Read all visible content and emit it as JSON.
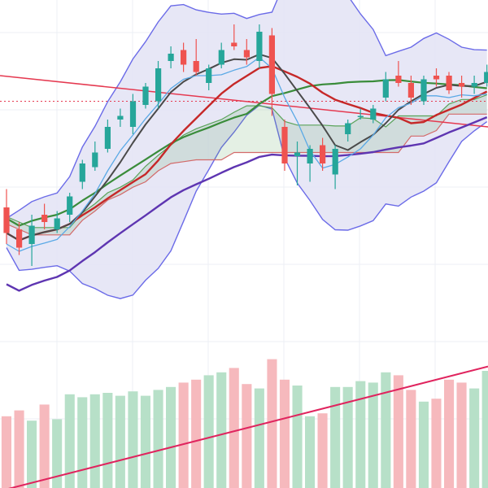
{
  "chart_data": {
    "type": "candlestick",
    "title": "",
    "grid": true,
    "legend": "none",
    "colors": {
      "up": "#26a69a",
      "down": "#ef5350",
      "volume_up": "#b7e0c8",
      "volume_down": "#f6b9bd",
      "bollinger_band": "#6b6be8",
      "bollinger_fill": "#e3e3f5",
      "ichimoku_green": "#5aa35a",
      "ichimoku_red": "#d36a6a",
      "ma_fast": "#4a4a4a",
      "ma_mid": "#3a8c3a",
      "ma_slow": "#c62828",
      "ma_long": "#5e35b1",
      "light_blue": "#5aa9e6",
      "trendline": "#e53950",
      "volume_trend": "#e0245e"
    },
    "price_ylim": [
      20,
      120
    ],
    "volume_ylim": [
      0,
      100
    ],
    "candles": [
      {
        "o": 70,
        "h": 75,
        "l": 60,
        "c": 63
      },
      {
        "o": 64,
        "h": 66,
        "l": 57,
        "c": 59
      },
      {
        "o": 60,
        "h": 68,
        "l": 54,
        "c": 65
      },
      {
        "o": 68,
        "h": 71,
        "l": 64,
        "c": 66
      },
      {
        "o": 64,
        "h": 69,
        "l": 63,
        "c": 67
      },
      {
        "o": 68,
        "h": 74,
        "l": 66,
        "c": 73
      },
      {
        "o": 77,
        "h": 83,
        "l": 75,
        "c": 82
      },
      {
        "o": 81,
        "h": 88,
        "l": 80,
        "c": 85
      },
      {
        "o": 86,
        "h": 94,
        "l": 85,
        "c": 92
      },
      {
        "o": 94,
        "h": 97,
        "l": 92,
        "c": 95
      },
      {
        "o": 92,
        "h": 101,
        "l": 90,
        "c": 99
      },
      {
        "o": 98,
        "h": 104,
        "l": 97,
        "c": 103
      },
      {
        "o": 99,
        "h": 110,
        "l": 97,
        "c": 108
      },
      {
        "o": 110,
        "h": 114,
        "l": 108,
        "c": 112
      },
      {
        "o": 113,
        "h": 115,
        "l": 107,
        "c": 109
      },
      {
        "o": 110,
        "h": 116,
        "l": 106,
        "c": 107
      },
      {
        "o": 104,
        "h": 109,
        "l": 102,
        "c": 108
      },
      {
        "o": 109,
        "h": 115,
        "l": 108,
        "c": 113
      },
      {
        "o": 115,
        "h": 120,
        "l": 113,
        "c": 114
      },
      {
        "o": 113,
        "h": 116,
        "l": 109,
        "c": 111
      },
      {
        "o": 110,
        "h": 120,
        "l": 108,
        "c": 118
      },
      {
        "o": 117,
        "h": 119,
        "l": 95,
        "c": 101
      },
      {
        "o": 92,
        "h": 94,
        "l": 80,
        "c": 82
      },
      {
        "o": 84,
        "h": 88,
        "l": 76,
        "c": 85
      },
      {
        "o": 82,
        "h": 87,
        "l": 77,
        "c": 86
      },
      {
        "o": 87,
        "h": 89,
        "l": 80,
        "c": 82
      },
      {
        "o": 79,
        "h": 87,
        "l": 75,
        "c": 86
      },
      {
        "o": 90,
        "h": 94,
        "l": 88,
        "c": 93
      },
      {
        "o": 95,
        "h": 97,
        "l": 94,
        "c": 95
      },
      {
        "o": 94,
        "h": 98,
        "l": 93,
        "c": 97
      },
      {
        "o": 100,
        "h": 107,
        "l": 99,
        "c": 105
      },
      {
        "o": 106,
        "h": 110,
        "l": 103,
        "c": 104
      },
      {
        "o": 104,
        "h": 106,
        "l": 98,
        "c": 100
      },
      {
        "o": 99,
        "h": 106,
        "l": 98,
        "c": 105
      },
      {
        "o": 106,
        "h": 108,
        "l": 103,
        "c": 105
      },
      {
        "o": 106,
        "h": 107,
        "l": 101,
        "c": 102
      },
      {
        "o": 104,
        "h": 106,
        "l": 100,
        "c": 103
      },
      {
        "o": 103,
        "h": 106,
        "l": 101,
        "c": 104
      },
      {
        "o": 104,
        "h": 109,
        "l": 103,
        "c": 107
      }
    ],
    "volume": [
      49,
      53,
      46,
      57,
      47,
      64,
      62,
      64,
      65,
      63,
      66,
      63,
      67,
      69,
      72,
      74,
      77,
      79,
      82,
      71,
      68,
      88,
      74,
      70,
      49,
      51,
      69,
      69,
      73,
      72,
      79,
      77,
      67,
      59,
      61,
      74,
      72,
      68,
      80
    ]
  }
}
